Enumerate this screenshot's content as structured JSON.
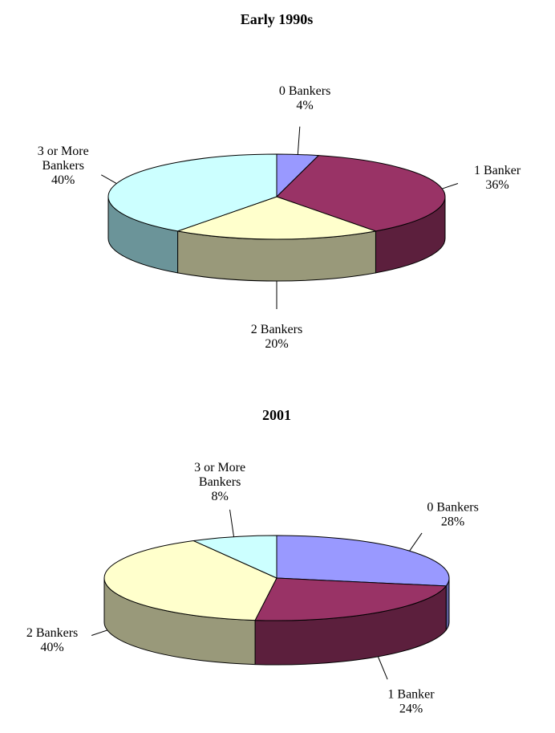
{
  "chart_data": [
    {
      "type": "pie",
      "title": "Early 1990s",
      "categories": [
        "0 Bankers",
        "1 Banker",
        "2 Bankers",
        "3 or More Bankers"
      ],
      "values": [
        4,
        36,
        20,
        40
      ],
      "value_labels": [
        "4%",
        "36%",
        "20%",
        "40%"
      ],
      "colors": [
        "#9999ff",
        "#993366",
        "#ffffcc",
        "#ccffff"
      ],
      "side_colors": [
        "#5c5c99",
        "#5c1f3d",
        "#99997a",
        "#6b9499"
      ]
    },
    {
      "type": "pie",
      "title": "2001",
      "categories": [
        "0 Bankers",
        "1 Banker",
        "2 Bankers",
        "3 or More Bankers"
      ],
      "values": [
        28,
        24,
        40,
        8
      ],
      "value_labels": [
        "28%",
        "24%",
        "40%",
        "8%"
      ],
      "colors": [
        "#9999ff",
        "#993366",
        "#ffffcc",
        "#ccffff"
      ],
      "side_colors": [
        "#5c5c99",
        "#5c1f3d",
        "#99997a",
        "#6b9499"
      ]
    }
  ]
}
